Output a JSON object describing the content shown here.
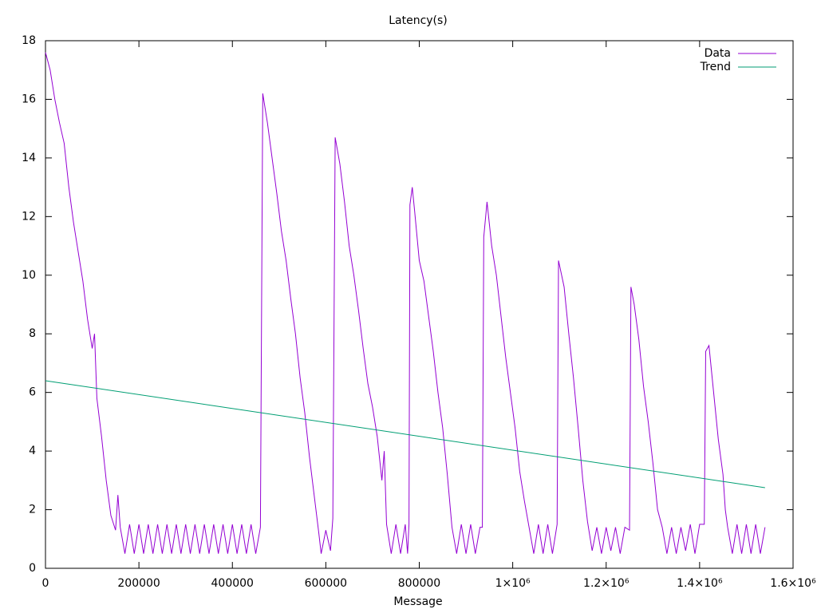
{
  "chart_data": {
    "type": "line",
    "title": "Latency(s)",
    "x_label": "Message",
    "xlim": [
      0,
      1600000
    ],
    "xticks": [
      0,
      200000,
      400000,
      600000,
      800000,
      {
        "value": 1000000,
        "label": "1×10⁶"
      },
      {
        "value": 1200000,
        "label": "1.2×10⁶"
      },
      {
        "value": 1400000,
        "label": "1.4×10⁶"
      },
      {
        "value": 1600000,
        "label": "1.6×10⁶"
      }
    ],
    "ylim": [
      0,
      18
    ],
    "yticks": [
      0,
      2,
      4,
      6,
      8,
      10,
      12,
      14,
      16,
      18
    ],
    "legend": "top-right",
    "grid": false,
    "series": [
      {
        "name": "Data",
        "color": "#9400d3",
        "x": [
          0,
          10000,
          20000,
          30000,
          40000,
          50000,
          60000,
          70000,
          80000,
          90000,
          100000,
          105000,
          110000,
          120000,
          130000,
          140000,
          150000,
          155000,
          160000,
          170000,
          180000,
          190000,
          200000,
          210000,
          220000,
          230000,
          240000,
          250000,
          260000,
          270000,
          280000,
          290000,
          300000,
          310000,
          320000,
          330000,
          340000,
          350000,
          360000,
          370000,
          380000,
          390000,
          400000,
          410000,
          420000,
          430000,
          440000,
          450000,
          460000,
          465000,
          475000,
          485000,
          495000,
          505000,
          515000,
          525000,
          535000,
          545000,
          555000,
          565000,
          575000,
          585000,
          590000,
          600000,
          610000,
          615000,
          620000,
          630000,
          640000,
          650000,
          660000,
          670000,
          680000,
          690000,
          700000,
          710000,
          720000,
          725000,
          730000,
          740000,
          750000,
          760000,
          770000,
          775000,
          778000,
          780000,
          785000,
          790000,
          800000,
          810000,
          820000,
          830000,
          840000,
          850000,
          860000,
          870000,
          880000,
          890000,
          900000,
          910000,
          920000,
          930000,
          935000,
          938000,
          945000,
          955000,
          965000,
          975000,
          985000,
          995000,
          1005000,
          1015000,
          1025000,
          1035000,
          1045000,
          1055000,
          1065000,
          1075000,
          1085000,
          1095000,
          1098000,
          1110000,
          1120000,
          1130000,
          1140000,
          1150000,
          1160000,
          1170000,
          1180000,
          1190000,
          1200000,
          1210000,
          1220000,
          1230000,
          1240000,
          1250000,
          1253000,
          1260000,
          1270000,
          1280000,
          1290000,
          1300000,
          1310000,
          1320000,
          1330000,
          1340000,
          1350000,
          1360000,
          1370000,
          1380000,
          1390000,
          1400000,
          1410000,
          1413000,
          1420000,
          1430000,
          1440000,
          1450000,
          1455000,
          1460000,
          1470000,
          1480000,
          1490000,
          1500000,
          1510000,
          1520000,
          1530000,
          1540000
        ],
        "values": [
          17.6,
          17.0,
          16.0,
          15.2,
          14.5,
          13.0,
          11.8,
          10.8,
          9.8,
          8.5,
          7.5,
          8.0,
          5.8,
          4.5,
          3.0,
          1.8,
          1.3,
          2.5,
          1.4,
          0.5,
          1.5,
          0.5,
          1.5,
          0.5,
          1.5,
          0.5,
          1.5,
          0.5,
          1.5,
          0.5,
          1.5,
          0.5,
          1.5,
          0.5,
          1.5,
          0.5,
          1.5,
          0.5,
          1.5,
          0.5,
          1.5,
          0.5,
          1.5,
          0.5,
          1.5,
          0.5,
          1.5,
          0.5,
          1.4,
          16.2,
          15.2,
          14.0,
          12.8,
          11.5,
          10.5,
          9.2,
          8.0,
          6.5,
          5.3,
          3.8,
          2.5,
          1.2,
          0.5,
          1.3,
          0.6,
          1.7,
          14.7,
          13.8,
          12.5,
          11.0,
          10.0,
          8.8,
          7.5,
          6.3,
          5.5,
          4.5,
          3.0,
          4.0,
          1.5,
          0.5,
          1.5,
          0.5,
          1.5,
          0.5,
          1.5,
          12.4,
          13.0,
          12.2,
          10.5,
          9.8,
          8.6,
          7.4,
          6.0,
          4.8,
          3.2,
          1.4,
          0.5,
          1.5,
          0.5,
          1.5,
          0.5,
          1.4,
          1.4,
          11.3,
          12.5,
          11.0,
          10.0,
          8.6,
          7.2,
          6.0,
          4.8,
          3.3,
          2.3,
          1.4,
          0.5,
          1.5,
          0.5,
          1.5,
          0.5,
          1.5,
          10.5,
          9.6,
          8.0,
          6.5,
          4.8,
          3.0,
          1.6,
          0.6,
          1.4,
          0.5,
          1.4,
          0.6,
          1.4,
          0.5,
          1.4,
          1.3,
          9.6,
          9.0,
          7.8,
          6.2,
          5.0,
          3.6,
          2.0,
          1.4,
          0.5,
          1.4,
          0.5,
          1.4,
          0.6,
          1.5,
          0.5,
          1.5,
          1.5,
          7.4,
          7.6,
          6.0,
          4.4,
          3.2,
          2.0,
          1.4,
          0.5,
          1.5,
          0.5,
          1.5,
          0.5,
          1.5,
          0.5,
          1.4
        ]
      },
      {
        "name": "Trend",
        "color": "#009e73",
        "x": [
          0,
          1540000
        ],
        "values": [
          6.4,
          2.75
        ]
      }
    ]
  }
}
